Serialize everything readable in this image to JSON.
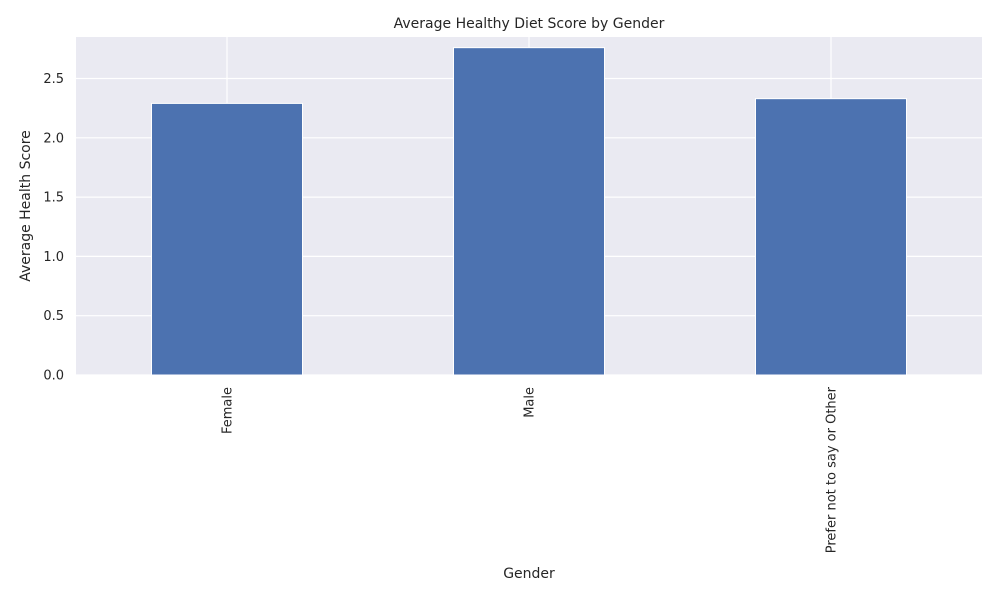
{
  "chart_data": {
    "type": "bar",
    "title": "Average Healthy Diet Score by Gender",
    "xlabel": "Gender",
    "ylabel": "Average Health Score",
    "categories": [
      "Female",
      "Male",
      "Prefer not to say or Other"
    ],
    "values": [
      2.29,
      2.76,
      2.33
    ],
    "ylim": [
      0,
      2.85
    ],
    "yticks": [
      0.0,
      0.5,
      1.0,
      1.5,
      2.0,
      2.5
    ],
    "ytick_labels": [
      "0.0",
      "0.5",
      "1.0",
      "1.5",
      "2.0",
      "2.5"
    ],
    "grid": true,
    "bar_color": "#4c72b0",
    "background_color": "#eaeaf2"
  }
}
